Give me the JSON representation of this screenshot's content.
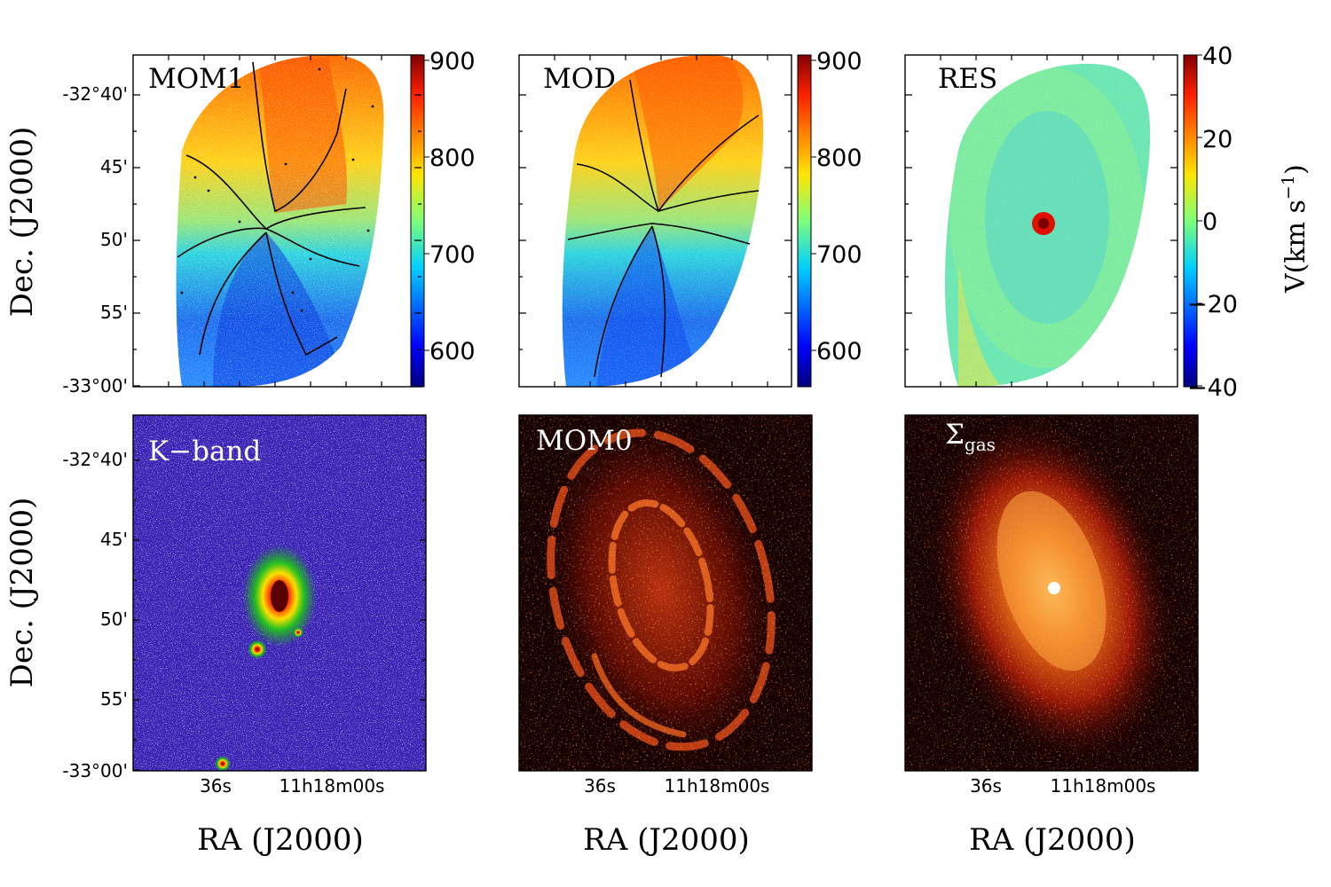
{
  "figure": {
    "panels": [
      {
        "id": "mom1",
        "label": "MOM1"
      },
      {
        "id": "mod",
        "label": "MOD"
      },
      {
        "id": "res",
        "label": "RES"
      },
      {
        "id": "kband",
        "label": "K−band"
      },
      {
        "id": "mom0",
        "label": "MOM0"
      },
      {
        "id": "sigma",
        "label_main": "Σ",
        "label_sub": "gas"
      }
    ],
    "y_ticks": [
      "-32°40'",
      "45'",
      "50'",
      "55'",
      "-33°00'"
    ],
    "x_ticks": [
      "36s",
      "11h18m00s"
    ],
    "y_axis_title": "Dec. (J2000)",
    "x_axis_title": "RA (J2000)",
    "colorbar_velocity": {
      "ticks": [
        "900",
        "800",
        "700",
        "600"
      ]
    },
    "colorbar_residual": {
      "ticks": [
        "40",
        "20",
        "0",
        "−20",
        "−40"
      ],
      "title": "V(km s",
      "title_sup": "−1",
      "title_close": ")"
    }
  },
  "colors": {
    "background": "#ffffff",
    "dark_map": "#160000"
  }
}
